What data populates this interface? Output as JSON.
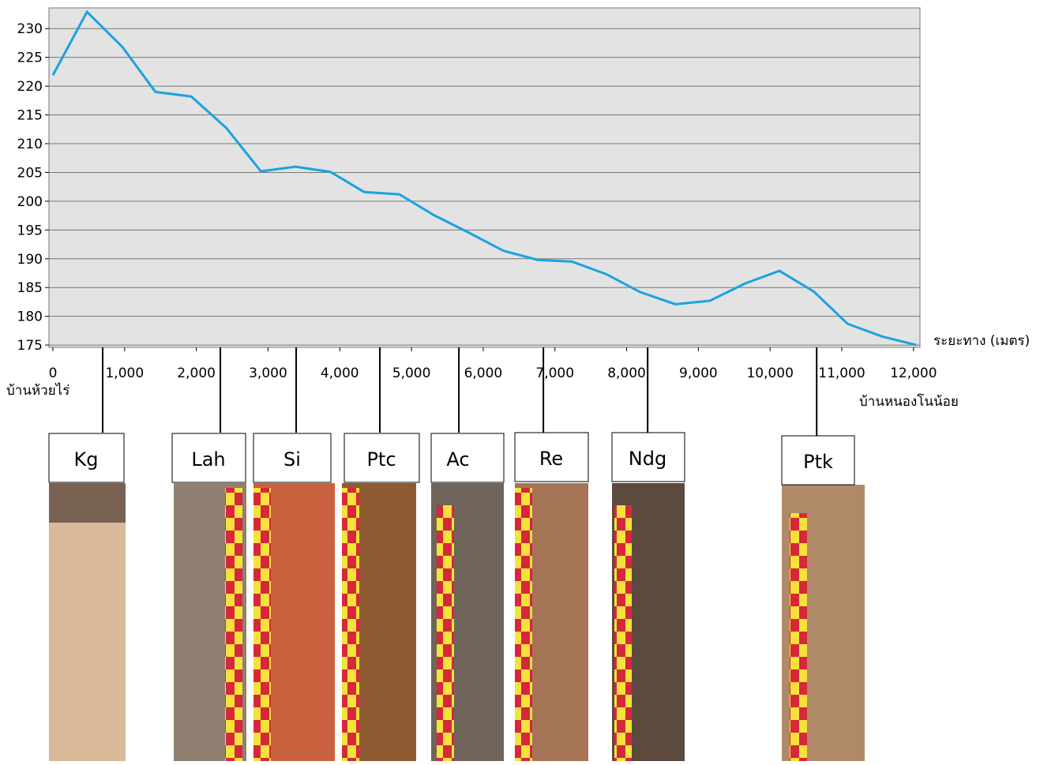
{
  "chart_data": {
    "type": "line",
    "x_label": "ระยะทาง (เมตร)",
    "start_label": "บ้านห้วยไร่",
    "end_label": "บ้านหนองโนน้อย",
    "x": [
      0,
      475,
      970,
      1430,
      1930,
      2420,
      2900,
      3380,
      3870,
      4340,
      4830,
      5310,
      5790,
      6280,
      6760,
      7240,
      7720,
      8190,
      8680,
      9160,
      9650,
      10130,
      10610,
      11080,
      11560,
      12040
    ],
    "series": [
      {
        "color": "#1aa3e0",
        "values": [
          221.9,
          232.9,
          226.8,
          219,
          218.2,
          212.7,
          205.2,
          206,
          205.1,
          201.6,
          201.2,
          197.6,
          194.6,
          191.4,
          189.8,
          189.5,
          187.3,
          184.2,
          182.1,
          182.7,
          185.7,
          187.9,
          184.3,
          178.7,
          176.5,
          175
        ]
      }
    ],
    "xlim": [
      -55,
      12090
    ],
    "ylim": [
      174.6,
      233.6
    ],
    "xticks": [
      0,
      {
        "value": 1000,
        "label": "1,000"
      },
      {
        "value": 2000,
        "label": "2,000"
      },
      {
        "value": 3000,
        "label": "3,000"
      },
      {
        "value": 4000,
        "label": "4,000"
      },
      {
        "value": 5000,
        "label": "5,000"
      },
      {
        "value": 6000,
        "label": "6,000"
      },
      {
        "value": 7000,
        "label": "7,000"
      },
      {
        "value": 8000,
        "label": "8,000"
      },
      {
        "value": 9000,
        "label": "9,000"
      },
      {
        "value": 10000,
        "label": "10,000"
      },
      {
        "value": 11000,
        "label": "11,000"
      },
      {
        "value": 12000,
        "label": "12,000"
      }
    ],
    "yticks": [
      175,
      180,
      185,
      190,
      195,
      200,
      205,
      210,
      215,
      220,
      225,
      230
    ],
    "grid": true,
    "soil_markers": {
      "labels": [
        "Kg",
        "Lah",
        "Si",
        "Ptc",
        "Ac",
        "Re",
        "Ndg",
        "Ptk"
      ],
      "x": [
        694,
        2335,
        3392,
        4559,
        5661,
        6839,
        8293,
        10650
      ]
    }
  }
}
